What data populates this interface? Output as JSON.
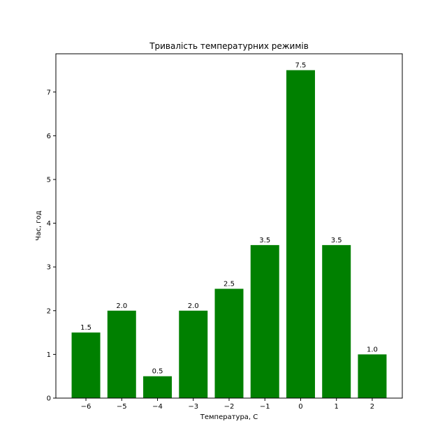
{
  "chart_data": {
    "type": "bar",
    "title": "Тривалість температурних режимів",
    "xlabel": "Температура, С",
    "ylabel": "Час, год",
    "categories": [
      "−6",
      "−5",
      "−4",
      "−3",
      "−2",
      "−1",
      "0",
      "1",
      "2"
    ],
    "x": [
      -6,
      -5,
      -4,
      -3,
      -2,
      -1,
      0,
      1,
      2
    ],
    "values": [
      1.5,
      2.0,
      0.5,
      2.0,
      2.5,
      3.5,
      7.5,
      3.5,
      1.0
    ],
    "data_labels": [
      "1.5",
      "2.0",
      "0.5",
      "2.0",
      "2.5",
      "3.5",
      "7.5",
      "3.5",
      "1.0"
    ],
    "yticks": [
      0,
      1,
      2,
      3,
      4,
      5,
      6,
      7
    ],
    "ylim": [
      0,
      7.875
    ],
    "xlim": [
      -6.84,
      2.84
    ],
    "grid": false,
    "bar_color": "#008000"
  }
}
